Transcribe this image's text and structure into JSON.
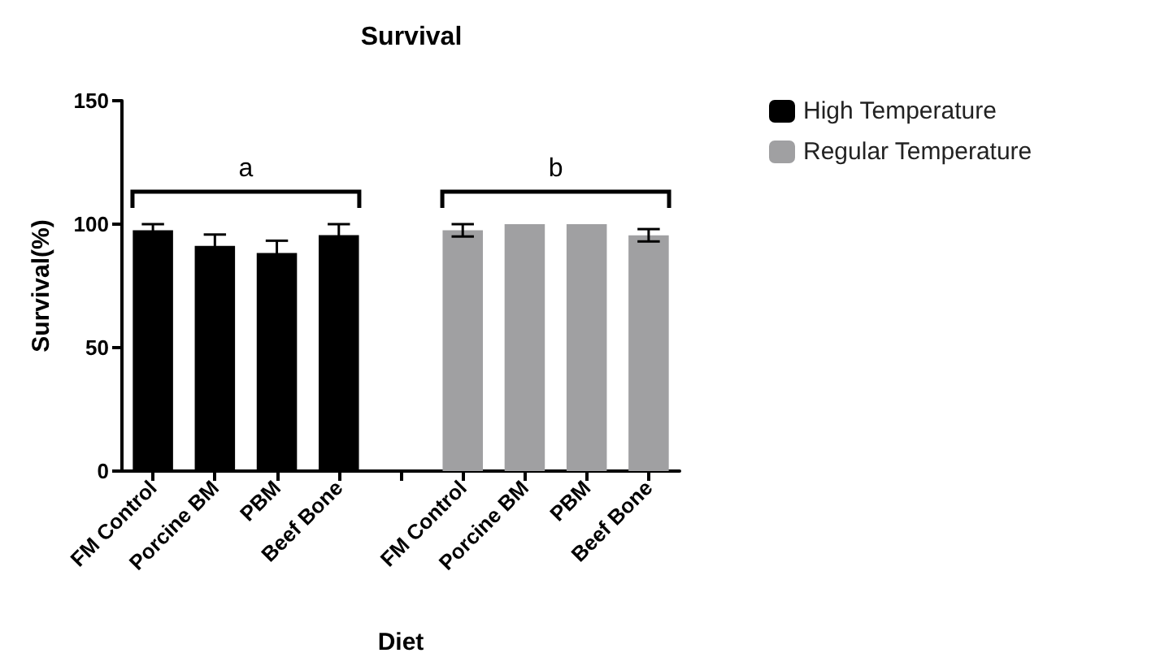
{
  "chart_data": {
    "type": "bar",
    "title": "Survival",
    "xlabel": "Diet",
    "ylabel": "Survival(%)",
    "categories": [
      "FM Control",
      "Porcine BM",
      "PBM",
      "Beef Bone",
      null,
      "FM Control",
      "Porcine BM",
      "PBM",
      "Beef Bone"
    ],
    "series": [
      {
        "name": "High Temperature",
        "color": "#000000",
        "values": [
          97.5,
          91.2,
          88.3,
          95.6,
          null,
          null,
          null,
          null,
          null
        ],
        "errors": [
          2.5,
          4.6,
          5,
          4.4,
          null,
          null,
          null,
          null,
          null
        ]
      },
      {
        "name": "Regular Temperature",
        "color": "#a0a0a2",
        "values": [
          null,
          null,
          null,
          null,
          null,
          97.5,
          100,
          100,
          95.5
        ],
        "errors": [
          null,
          null,
          null,
          null,
          null,
          2.5,
          null,
          null,
          2.5
        ]
      }
    ],
    "annotations": [
      "a",
      "b"
    ],
    "ylim": [
      0,
      150
    ],
    "yticks": [
      0,
      50,
      100,
      150
    ],
    "grid": false,
    "legend": "top right"
  }
}
